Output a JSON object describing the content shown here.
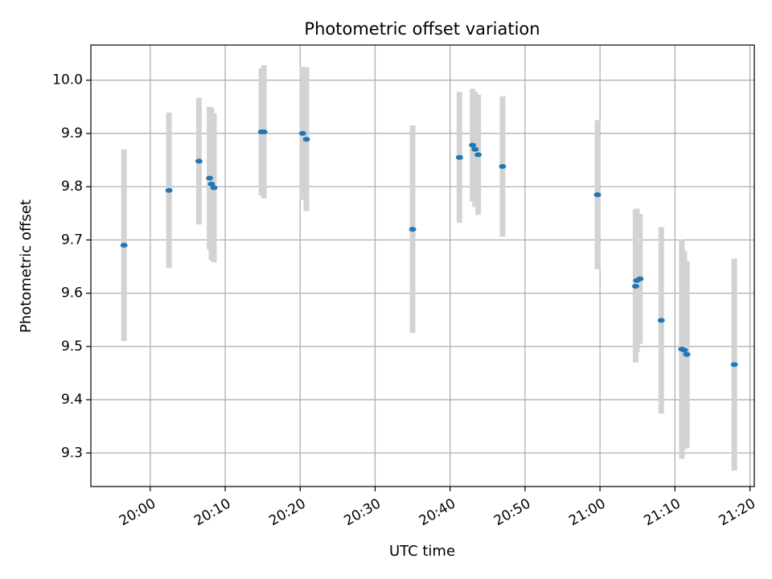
{
  "chart_data": {
    "type": "scatter",
    "title": "Photometric offset variation",
    "xlabel": "UTC time",
    "ylabel": "Photometric offset",
    "x_tick_labels": [
      "20:00",
      "20:10",
      "20:20",
      "20:30",
      "20:40",
      "20:50",
      "21:00",
      "21:10",
      "21:20"
    ],
    "y_tick_labels": [
      "9.3",
      "9.4",
      "9.5",
      "9.6",
      "9.7",
      "9.8",
      "9.9",
      "10.0"
    ],
    "xlim": [
      "19:52:05",
      "21:20:35"
    ],
    "ylim": [
      9.237,
      10.066
    ],
    "grid": true,
    "colors": {
      "marker": "#1f77b4",
      "errorbar": "#d3d3d3",
      "grid": "#b0b0b0"
    },
    "points": [
      {
        "x": "19:56:30",
        "y": 9.69,
        "yerr": 0.18
      },
      {
        "x": "20:02:30",
        "y": 9.793,
        "yerr": 0.146
      },
      {
        "x": "20:06:30",
        "y": 9.848,
        "yerr": 0.119
      },
      {
        "x": "20:07:55",
        "y": 9.816,
        "yerr": 0.134
      },
      {
        "x": "20:08:10",
        "y": 9.805,
        "yerr": 0.143
      },
      {
        "x": "20:08:30",
        "y": 9.798,
        "yerr": 0.14
      },
      {
        "x": "20:14:50",
        "y": 9.903,
        "yerr": 0.119
      },
      {
        "x": "20:15:10",
        "y": 9.903,
        "yerr": 0.125
      },
      {
        "x": "20:20:20",
        "y": 9.9,
        "yerr": 0.125
      },
      {
        "x": "20:20:50",
        "y": 9.889,
        "yerr": 0.135
      },
      {
        "x": "20:35:00",
        "y": 9.72,
        "yerr": 0.195
      },
      {
        "x": "20:41:15",
        "y": 9.855,
        "yerr": 0.123
      },
      {
        "x": "20:43:00",
        "y": 9.878,
        "yerr": 0.106
      },
      {
        "x": "20:43:20",
        "y": 9.87,
        "yerr": 0.108
      },
      {
        "x": "20:43:45",
        "y": 9.86,
        "yerr": 0.113
      },
      {
        "x": "20:47:00",
        "y": 9.838,
        "yerr": 0.132
      },
      {
        "x": "20:59:40",
        "y": 9.785,
        "yerr": 0.14
      },
      {
        "x": "21:04:45",
        "y": 9.613,
        "yerr": 0.143
      },
      {
        "x": "21:04:55",
        "y": 9.624,
        "yerr": 0.135
      },
      {
        "x": "21:05:20",
        "y": 9.627,
        "yerr": 0.122
      },
      {
        "x": "21:08:10",
        "y": 9.549,
        "yerr": 0.175
      },
      {
        "x": "21:10:55",
        "y": 9.495,
        "yerr": 0.206
      },
      {
        "x": "21:11:15",
        "y": 9.493,
        "yerr": 0.186
      },
      {
        "x": "21:11:35",
        "y": 9.485,
        "yerr": 0.175
      },
      {
        "x": "21:17:55",
        "y": 9.466,
        "yerr": 0.199
      }
    ]
  }
}
